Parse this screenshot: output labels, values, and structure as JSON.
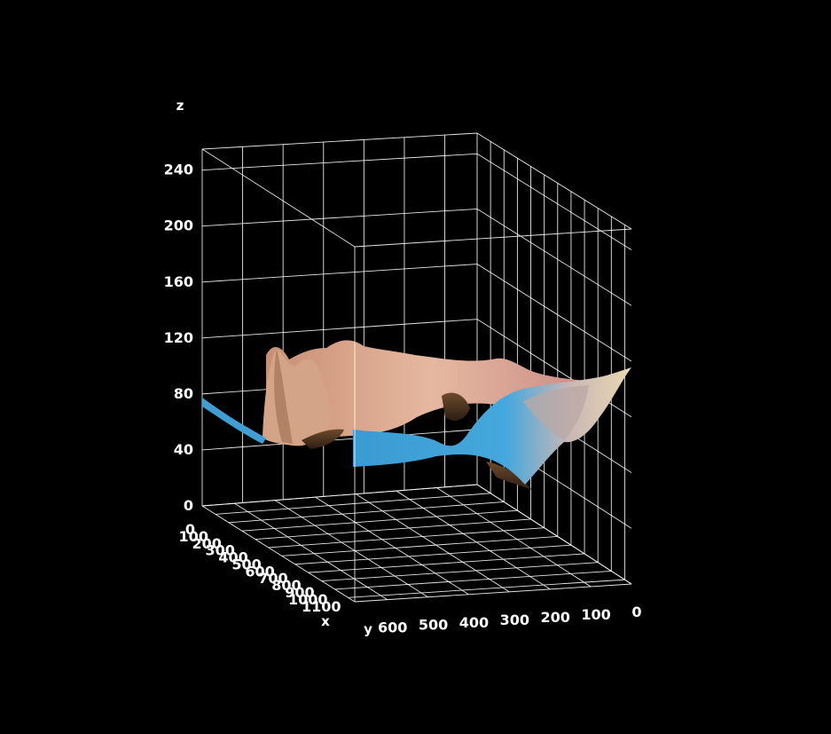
{
  "chart_data": {
    "type": "surface-3d",
    "xlabel": "x",
    "ylabel": "y",
    "zlabel": "z",
    "x_ticks": [
      "0",
      "100",
      "200",
      "300",
      "400",
      "500",
      "600",
      "700",
      "800",
      "900",
      "1000",
      "1100"
    ],
    "y_ticks": [
      "0",
      "100",
      "200",
      "300",
      "400",
      "500",
      "600"
    ],
    "z_ticks": [
      "0",
      "40",
      "80",
      "120",
      "160",
      "200",
      "240"
    ],
    "xlim": [
      0,
      1150
    ],
    "ylim": [
      0,
      680
    ],
    "zlim": [
      0,
      255
    ],
    "grid": true,
    "background": "#000000",
    "surface_colors": {
      "skin": "#d7a98f",
      "blue": "#3e9fd3",
      "dark": "#4a3420"
    }
  }
}
